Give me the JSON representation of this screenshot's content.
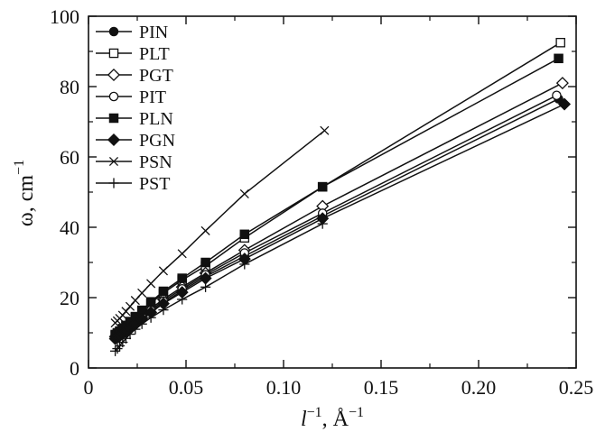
{
  "chart_data": {
    "type": "line",
    "xlabel": "l⁻¹, Å⁻¹",
    "xlabel_parts": {
      "var": "l",
      "sup1": "−1",
      "unit": ", Å",
      "sup2": "−1"
    },
    "ylabel": "ω, cm⁻¹",
    "ylabel_parts": {
      "var": "ω, cm",
      "sup": "−1"
    },
    "xlim": [
      0,
      0.25
    ],
    "ylim": [
      0,
      100
    ],
    "xticks": [
      0,
      0.05,
      0.1,
      0.15,
      0.2,
      0.25
    ],
    "xtick_labels": [
      "0",
      "0.05",
      "0.10",
      "0.15",
      "0.20",
      "0.25"
    ],
    "yticks": [
      0,
      20,
      40,
      60,
      80,
      100
    ],
    "ytick_labels": [
      "0",
      "20",
      "40",
      "60",
      "80",
      "100"
    ],
    "grid": false,
    "legend_position": "top-left",
    "series": [
      {
        "name": "PIN",
        "marker": "circle-filled",
        "x": [
          0.0137,
          0.0148,
          0.016,
          0.0175,
          0.0192,
          0.0213,
          0.024,
          0.0274,
          0.032,
          0.0384,
          0.048,
          0.06,
          0.08,
          0.12,
          0.241
        ],
        "y": [
          8.5,
          8.9,
          9.3,
          9.9,
          10.6,
          11.5,
          12.6,
          14.1,
          16.0,
          18.5,
          22.0,
          26.0,
          31.8,
          43.2,
          76.5
        ]
      },
      {
        "name": "PLT",
        "marker": "square-open",
        "x": [
          0.0137,
          0.0148,
          0.016,
          0.0175,
          0.0192,
          0.0213,
          0.024,
          0.0274,
          0.032,
          0.0384,
          0.048,
          0.06,
          0.08,
          0.12,
          0.242
        ],
        "y": [
          9.3,
          9.8,
          10.3,
          11.0,
          11.9,
          13.0,
          14.3,
          16.1,
          18.4,
          21.3,
          25.0,
          29.0,
          37.0,
          51.5,
          92.5
        ]
      },
      {
        "name": "PGT",
        "marker": "diamond-open",
        "x": [
          0.0137,
          0.0148,
          0.016,
          0.0175,
          0.0192,
          0.0213,
          0.024,
          0.0274,
          0.032,
          0.0384,
          0.048,
          0.06,
          0.08,
          0.12,
          0.243
        ],
        "y": [
          8.9,
          9.3,
          9.8,
          10.4,
          11.2,
          12.1,
          13.3,
          14.9,
          16.9,
          19.5,
          23.0,
          27.0,
          33.5,
          46.0,
          81.0
        ]
      },
      {
        "name": "PIT",
        "marker": "circle-open",
        "x": [
          0.0137,
          0.0148,
          0.016,
          0.0175,
          0.0192,
          0.0213,
          0.024,
          0.0274,
          0.032,
          0.0384,
          0.048,
          0.06,
          0.08,
          0.12,
          0.24
        ],
        "y": [
          8.7,
          9.1,
          9.6,
          10.2,
          10.9,
          11.8,
          13.0,
          14.5,
          16.4,
          19.0,
          22.5,
          26.5,
          32.7,
          44.0,
          77.5
        ]
      },
      {
        "name": "PLN",
        "marker": "square-filled",
        "x": [
          0.0137,
          0.0148,
          0.016,
          0.0175,
          0.0192,
          0.0213,
          0.024,
          0.0274,
          0.032,
          0.0384,
          0.048,
          0.06,
          0.08,
          0.12,
          0.241
        ],
        "y": [
          9.5,
          10.0,
          10.5,
          11.2,
          12.1,
          13.2,
          14.6,
          16.4,
          18.8,
          21.8,
          25.5,
          30.0,
          38.0,
          51.5,
          88.0
        ]
      },
      {
        "name": "PGN",
        "marker": "diamond-filled",
        "x": [
          0.0137,
          0.0148,
          0.016,
          0.0175,
          0.0192,
          0.0213,
          0.024,
          0.0274,
          0.032,
          0.0384,
          0.048,
          0.06,
          0.08,
          0.12,
          0.244
        ],
        "y": [
          8.3,
          8.7,
          9.1,
          9.7,
          10.4,
          11.3,
          12.4,
          13.9,
          15.8,
          18.3,
          21.5,
          25.5,
          31.0,
          42.5,
          75.0
        ]
      },
      {
        "name": "PSN",
        "marker": "x",
        "x": [
          0.0137,
          0.0148,
          0.016,
          0.0175,
          0.0192,
          0.0213,
          0.024,
          0.0274,
          0.032,
          0.0384,
          0.048,
          0.06,
          0.08,
          0.121
        ],
        "y": [
          12.8,
          13.4,
          14.1,
          15.0,
          16.1,
          17.5,
          19.2,
          21.3,
          24.0,
          27.6,
          32.5,
          39.0,
          49.5,
          67.5
        ]
      },
      {
        "name": "PST",
        "marker": "plus",
        "x": [
          0.0137,
          0.0148,
          0.016,
          0.0175,
          0.0192,
          0.0213,
          0.024,
          0.0274,
          0.032,
          0.0384,
          0.048,
          0.06,
          0.08,
          0.12
        ],
        "y": [
          4.8,
          5.5,
          6.3,
          7.3,
          8.4,
          9.6,
          11.0,
          12.5,
          14.3,
          16.5,
          19.5,
          23.0,
          29.5,
          41.0
        ]
      }
    ]
  }
}
